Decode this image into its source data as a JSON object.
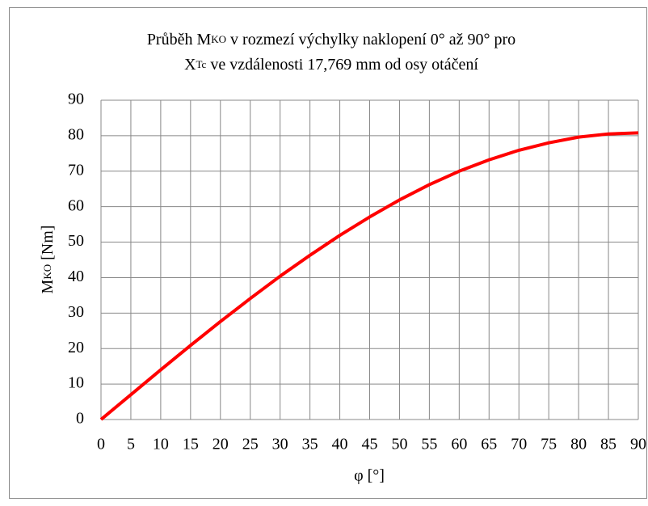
{
  "chart_data": {
    "type": "line",
    "title_lines": [
      [
        {
          "text": "Průběh M",
          "small": false
        },
        {
          "text": "KO",
          "small": true
        },
        {
          "text": " v rozmezí výchylky naklopení 0° až 90° pro",
          "small": false
        }
      ],
      [
        {
          "text": "X",
          "small": false
        },
        {
          "text": "Tc",
          "small": true
        },
        {
          "text": " ve vzdálenosti 17,769 mm od osy otáčení",
          "small": false
        }
      ]
    ],
    "y_label": [
      {
        "text": "M",
        "small": false
      },
      {
        "text": "KO",
        "small": true
      },
      {
        "text": " [Nm]",
        "small": false
      }
    ],
    "x_label": "φ [°]",
    "x": [
      0,
      5,
      10,
      15,
      20,
      25,
      30,
      35,
      40,
      45,
      50,
      55,
      60,
      65,
      70,
      75,
      80,
      85,
      90
    ],
    "series": [
      {
        "name": "MKO",
        "color": "#ff0000",
        "values": [
          0,
          7.0,
          14.0,
          20.9,
          27.6,
          34.1,
          40.4,
          46.3,
          51.9,
          57.1,
          61.9,
          66.2,
          70.0,
          73.2,
          75.9,
          78.0,
          79.6,
          80.5,
          80.8
        ]
      }
    ],
    "xlim": [
      0,
      90
    ],
    "xticks": [
      0,
      5,
      10,
      15,
      20,
      25,
      30,
      35,
      40,
      45,
      50,
      55,
      60,
      65,
      70,
      75,
      80,
      85,
      90
    ],
    "ylim": [
      0,
      90
    ],
    "yticks": [
      0,
      10,
      20,
      30,
      40,
      50,
      60,
      70,
      80,
      90
    ],
    "grid": true
  }
}
